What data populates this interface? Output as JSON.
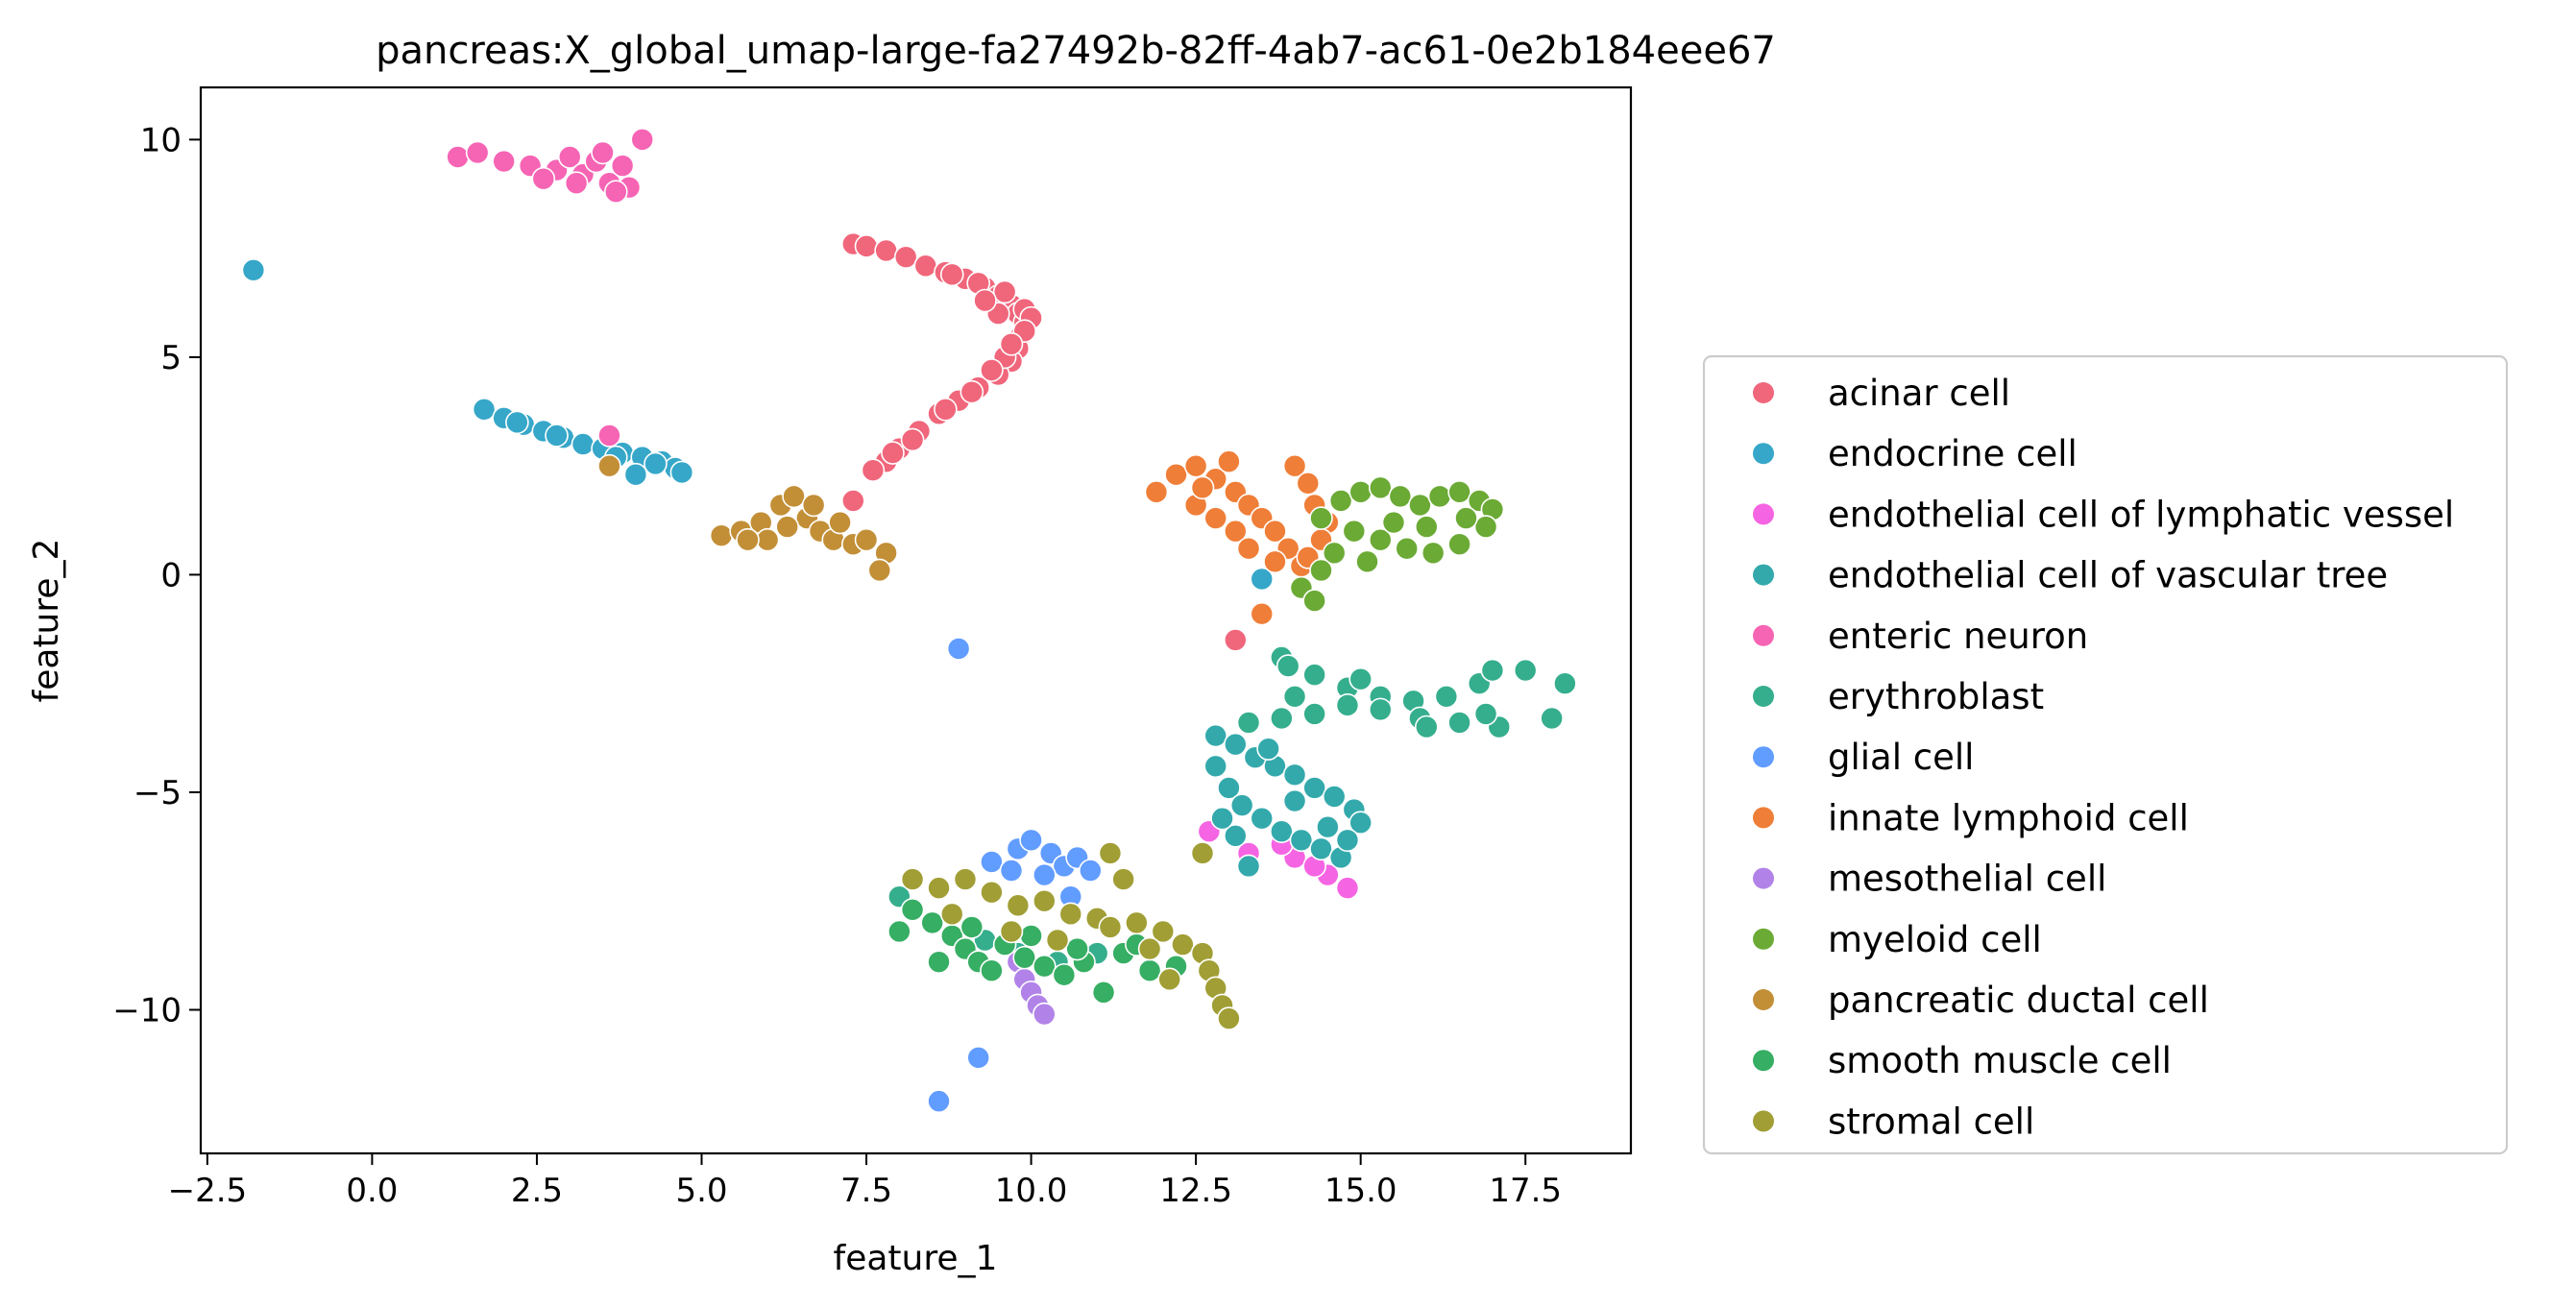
{
  "chart_data": {
    "type": "scatter",
    "title": "pancreas:X_global_umap-large-fa27492b-82ff-4ab7-ac61-0e2b184eee67",
    "xlabel": "feature_1",
    "ylabel": "feature_2",
    "xlim": [
      -2.6,
      19.1
    ],
    "ylim": [
      -13.3,
      11.2
    ],
    "xticks": [
      "−2.5",
      "0.0",
      "2.5",
      "5.0",
      "7.5",
      "10.0",
      "12.5",
      "15.0",
      "17.5"
    ],
    "xtick_values": [
      -2.5,
      0,
      2.5,
      5,
      7.5,
      10,
      12.5,
      15,
      17.5
    ],
    "yticks": [
      "−10",
      "−5",
      "0",
      "5",
      "10"
    ],
    "ytick_values": [
      -10,
      -5,
      0,
      5,
      10
    ],
    "grid": false,
    "legend_position": "outside-right",
    "series": [
      {
        "name": "acinar cell",
        "color": "#f0667b",
        "points": [
          [
            7.3,
            7.6
          ],
          [
            7.5,
            7.55
          ],
          [
            7.8,
            7.45
          ],
          [
            8.1,
            7.3
          ],
          [
            8.4,
            7.1
          ],
          [
            8.7,
            6.95
          ],
          [
            9.0,
            6.8
          ],
          [
            9.3,
            6.6
          ],
          [
            9.5,
            6.4
          ],
          [
            9.7,
            6.2
          ],
          [
            9.8,
            6.0
          ],
          [
            9.9,
            5.8
          ],
          [
            9.85,
            5.5
          ],
          [
            9.8,
            5.2
          ],
          [
            9.7,
            4.9
          ],
          [
            9.5,
            4.6
          ],
          [
            9.2,
            4.3
          ],
          [
            8.9,
            4.0
          ],
          [
            8.6,
            3.7
          ],
          [
            8.3,
            3.3
          ],
          [
            8.0,
            2.9
          ],
          [
            7.8,
            2.6
          ],
          [
            7.6,
            2.4
          ],
          [
            7.3,
            1.7
          ],
          [
            8.8,
            6.9
          ],
          [
            9.2,
            6.7
          ],
          [
            9.6,
            6.5
          ],
          [
            9.9,
            6.1
          ],
          [
            10.0,
            5.9
          ],
          [
            9.9,
            5.6
          ],
          [
            9.6,
            5.0
          ],
          [
            9.4,
            4.7
          ],
          [
            9.1,
            4.2
          ],
          [
            8.7,
            3.8
          ],
          [
            8.2,
            3.1
          ],
          [
            7.9,
            2.8
          ],
          [
            9.5,
            6.0
          ],
          [
            9.3,
            6.3
          ],
          [
            9.7,
            5.3
          ],
          [
            13.1,
            -1.5
          ]
        ]
      },
      {
        "name": "endocrine cell",
        "color": "#36a7c9",
        "points": [
          [
            -1.8,
            7.0
          ],
          [
            1.7,
            3.8
          ],
          [
            2.0,
            3.6
          ],
          [
            2.3,
            3.45
          ],
          [
            2.6,
            3.3
          ],
          [
            2.9,
            3.15
          ],
          [
            3.2,
            3.0
          ],
          [
            3.5,
            2.9
          ],
          [
            3.8,
            2.8
          ],
          [
            4.1,
            2.7
          ],
          [
            4.4,
            2.6
          ],
          [
            4.6,
            2.45
          ],
          [
            4.7,
            2.35
          ],
          [
            4.0,
            2.3
          ],
          [
            3.7,
            2.7
          ],
          [
            2.2,
            3.5
          ],
          [
            2.8,
            3.2
          ],
          [
            4.3,
            2.55
          ],
          [
            13.5,
            -0.1
          ]
        ]
      },
      {
        "name": "endothelial cell of lymphatic vessel",
        "color": "#f564e3",
        "points": [
          [
            12.7,
            -5.9
          ],
          [
            13.3,
            -6.4
          ],
          [
            14.0,
            -6.5
          ],
          [
            14.5,
            -6.9
          ],
          [
            14.8,
            -7.2
          ],
          [
            13.8,
            -6.2
          ],
          [
            14.3,
            -6.7
          ]
        ]
      },
      {
        "name": "endothelial cell of vascular tree",
        "color": "#33a9ac",
        "points": [
          [
            12.8,
            -3.7
          ],
          [
            13.1,
            -3.9
          ],
          [
            13.4,
            -4.2
          ],
          [
            13.7,
            -4.4
          ],
          [
            14.0,
            -4.6
          ],
          [
            14.3,
            -4.9
          ],
          [
            14.6,
            -5.1
          ],
          [
            14.9,
            -5.4
          ],
          [
            15.0,
            -5.7
          ],
          [
            12.8,
            -4.4
          ],
          [
            13.0,
            -4.9
          ],
          [
            13.2,
            -5.3
          ],
          [
            13.5,
            -5.6
          ],
          [
            13.8,
            -5.9
          ],
          [
            14.1,
            -6.1
          ],
          [
            14.4,
            -6.3
          ],
          [
            14.7,
            -6.5
          ],
          [
            13.3,
            -6.7
          ],
          [
            13.6,
            -4.0
          ],
          [
            14.0,
            -5.2
          ],
          [
            14.5,
            -5.8
          ],
          [
            13.1,
            -6.0
          ],
          [
            12.9,
            -5.6
          ],
          [
            14.8,
            -6.1
          ]
        ]
      },
      {
        "name": "enteric neuron",
        "color": "#f664b4",
        "points": [
          [
            1.3,
            9.6
          ],
          [
            1.6,
            9.7
          ],
          [
            2.0,
            9.5
          ],
          [
            2.4,
            9.4
          ],
          [
            2.8,
            9.3
          ],
          [
            3.0,
            9.6
          ],
          [
            3.2,
            9.2
          ],
          [
            3.4,
            9.5
          ],
          [
            3.6,
            9.0
          ],
          [
            3.8,
            9.4
          ],
          [
            3.9,
            8.9
          ],
          [
            4.1,
            10.0
          ],
          [
            3.1,
            9.0
          ],
          [
            2.6,
            9.1
          ],
          [
            3.5,
            9.7
          ],
          [
            3.7,
            8.8
          ],
          [
            3.6,
            3.2
          ]
        ]
      },
      {
        "name": "erythroblast",
        "color": "#35ae8d",
        "points": [
          [
            13.8,
            -1.9
          ],
          [
            14.3,
            -2.3
          ],
          [
            14.8,
            -2.6
          ],
          [
            15.3,
            -2.8
          ],
          [
            15.8,
            -2.9
          ],
          [
            16.3,
            -2.8
          ],
          [
            16.8,
            -2.5
          ],
          [
            17.0,
            -2.2
          ],
          [
            17.5,
            -2.2
          ],
          [
            18.1,
            -2.5
          ],
          [
            17.9,
            -3.3
          ],
          [
            17.1,
            -3.5
          ],
          [
            16.5,
            -3.4
          ],
          [
            15.9,
            -3.3
          ],
          [
            15.3,
            -3.1
          ],
          [
            14.8,
            -3.0
          ],
          [
            14.3,
            -3.2
          ],
          [
            13.8,
            -3.3
          ],
          [
            13.3,
            -3.4
          ],
          [
            15.0,
            -2.4
          ],
          [
            16.0,
            -3.5
          ],
          [
            16.9,
            -3.2
          ],
          [
            14.0,
            -2.8
          ],
          [
            13.9,
            -2.1
          ],
          [
            8.0,
            -7.4
          ],
          [
            8.8,
            -7.8
          ],
          [
            9.3,
            -8.4
          ],
          [
            9.8,
            -8.7
          ],
          [
            10.4,
            -8.9
          ],
          [
            11.0,
            -8.7
          ]
        ]
      },
      {
        "name": "glial cell",
        "color": "#619cff",
        "points": [
          [
            8.9,
            -1.7
          ],
          [
            9.4,
            -6.6
          ],
          [
            9.8,
            -6.3
          ],
          [
            10.0,
            -6.1
          ],
          [
            10.3,
            -6.4
          ],
          [
            10.5,
            -6.7
          ],
          [
            10.7,
            -6.5
          ],
          [
            10.9,
            -6.8
          ],
          [
            10.6,
            -7.4
          ],
          [
            9.7,
            -6.8
          ],
          [
            10.2,
            -6.9
          ],
          [
            9.2,
            -11.1
          ],
          [
            8.6,
            -12.1
          ]
        ]
      },
      {
        "name": "innate lymphoid cell",
        "color": "#ef7e38",
        "points": [
          [
            11.9,
            1.9
          ],
          [
            12.2,
            2.3
          ],
          [
            12.5,
            2.5
          ],
          [
            12.8,
            2.2
          ],
          [
            13.1,
            1.9
          ],
          [
            13.3,
            1.6
          ],
          [
            13.5,
            1.3
          ],
          [
            13.7,
            1.0
          ],
          [
            13.9,
            0.6
          ],
          [
            14.1,
            0.2
          ],
          [
            13.7,
            0.3
          ],
          [
            12.5,
            1.6
          ],
          [
            12.8,
            1.3
          ],
          [
            13.1,
            1.0
          ],
          [
            14.0,
            2.5
          ],
          [
            14.2,
            2.1
          ],
          [
            14.3,
            1.6
          ],
          [
            14.5,
            1.2
          ],
          [
            14.4,
            0.8
          ],
          [
            14.2,
            0.4
          ],
          [
            13.5,
            -0.9
          ],
          [
            13.3,
            0.6
          ],
          [
            12.6,
            2.0
          ],
          [
            13.0,
            2.6
          ]
        ]
      },
      {
        "name": "mesothelial cell",
        "color": "#b183e8",
        "points": [
          [
            9.8,
            -8.9
          ],
          [
            9.9,
            -9.3
          ],
          [
            10.0,
            -9.6
          ],
          [
            10.1,
            -9.9
          ],
          [
            10.2,
            -10.1
          ]
        ]
      },
      {
        "name": "myeloid cell",
        "color": "#6baa35",
        "points": [
          [
            14.4,
            1.3
          ],
          [
            14.7,
            1.7
          ],
          [
            15.0,
            1.9
          ],
          [
            15.3,
            2.0
          ],
          [
            15.6,
            1.8
          ],
          [
            15.9,
            1.6
          ],
          [
            16.2,
            1.8
          ],
          [
            16.5,
            1.9
          ],
          [
            16.8,
            1.7
          ],
          [
            17.0,
            1.5
          ],
          [
            16.9,
            1.1
          ],
          [
            16.5,
            0.7
          ],
          [
            16.1,
            0.5
          ],
          [
            15.7,
            0.6
          ],
          [
            15.3,
            0.8
          ],
          [
            14.9,
            1.0
          ],
          [
            14.6,
            0.5
          ],
          [
            14.4,
            0.1
          ],
          [
            14.1,
            -0.3
          ],
          [
            14.3,
            -0.6
          ],
          [
            15.5,
            1.2
          ],
          [
            16.0,
            1.1
          ],
          [
            16.6,
            1.3
          ],
          [
            15.1,
            0.3
          ]
        ]
      },
      {
        "name": "pancreatic ductal cell",
        "color": "#c28f37",
        "points": [
          [
            5.3,
            0.9
          ],
          [
            5.6,
            1.0
          ],
          [
            5.9,
            1.2
          ],
          [
            6.2,
            1.6
          ],
          [
            6.4,
            1.8
          ],
          [
            6.6,
            1.3
          ],
          [
            6.8,
            1.0
          ],
          [
            7.0,
            0.8
          ],
          [
            7.3,
            0.7
          ],
          [
            7.5,
            0.8
          ],
          [
            7.8,
            0.5
          ],
          [
            7.7,
            0.1
          ],
          [
            6.0,
            0.8
          ],
          [
            6.3,
            1.1
          ],
          [
            5.7,
            0.8
          ],
          [
            6.7,
            1.6
          ],
          [
            7.1,
            1.2
          ],
          [
            3.6,
            2.5
          ]
        ]
      },
      {
        "name": "smooth muscle cell",
        "color": "#36ae63",
        "points": [
          [
            8.0,
            -8.2
          ],
          [
            8.2,
            -7.7
          ],
          [
            8.5,
            -8.0
          ],
          [
            8.8,
            -8.3
          ],
          [
            9.0,
            -8.6
          ],
          [
            9.2,
            -8.9
          ],
          [
            9.4,
            -9.1
          ],
          [
            9.6,
            -8.5
          ],
          [
            9.9,
            -8.8
          ],
          [
            10.2,
            -9.0
          ],
          [
            10.5,
            -9.2
          ],
          [
            10.8,
            -8.9
          ],
          [
            11.1,
            -9.6
          ],
          [
            11.4,
            -8.7
          ],
          [
            11.8,
            -9.1
          ],
          [
            12.2,
            -9.0
          ],
          [
            8.6,
            -8.9
          ],
          [
            9.1,
            -8.1
          ],
          [
            10.0,
            -8.3
          ],
          [
            10.7,
            -8.6
          ],
          [
            11.6,
            -8.5
          ]
        ]
      },
      {
        "name": "stromal cell",
        "color": "#a19e35",
        "points": [
          [
            8.2,
            -7.0
          ],
          [
            8.6,
            -7.2
          ],
          [
            9.0,
            -7.0
          ],
          [
            9.4,
            -7.3
          ],
          [
            9.8,
            -7.6
          ],
          [
            10.2,
            -7.5
          ],
          [
            10.6,
            -7.8
          ],
          [
            11.0,
            -7.9
          ],
          [
            11.2,
            -6.4
          ],
          [
            11.4,
            -7.0
          ],
          [
            11.6,
            -8.0
          ],
          [
            12.0,
            -8.2
          ],
          [
            12.3,
            -8.5
          ],
          [
            12.6,
            -8.7
          ],
          [
            12.7,
            -9.1
          ],
          [
            12.8,
            -9.5
          ],
          [
            12.9,
            -9.9
          ],
          [
            13.0,
            -10.2
          ],
          [
            11.8,
            -8.6
          ],
          [
            12.1,
            -9.3
          ],
          [
            12.6,
            -6.4
          ],
          [
            9.7,
            -8.2
          ],
          [
            10.4,
            -8.4
          ],
          [
            11.2,
            -8.1
          ],
          [
            8.8,
            -7.8
          ]
        ]
      }
    ]
  }
}
